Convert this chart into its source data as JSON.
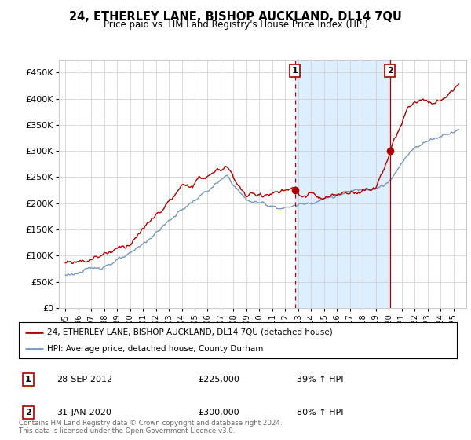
{
  "title": "24, ETHERLEY LANE, BISHOP AUCKLAND, DL14 7QU",
  "subtitle": "Price paid vs. HM Land Registry's House Price Index (HPI)",
  "ylim": [
    0,
    475000
  ],
  "yticks": [
    0,
    50000,
    100000,
    150000,
    200000,
    250000,
    300000,
    350000,
    400000,
    450000
  ],
  "ytick_labels": [
    "£0",
    "£50K",
    "£100K",
    "£150K",
    "£200K",
    "£250K",
    "£300K",
    "£350K",
    "£400K",
    "£450K"
  ],
  "hpi_color": "#7799bb",
  "price_color": "#aa0000",
  "shading_color": "#ddeeff",
  "sale1_year": 2012.75,
  "sale1_price": 225000,
  "sale2_year": 2020.083,
  "sale2_price": 300000,
  "legend_line1": "24, ETHERLEY LANE, BISHOP AUCKLAND, DL14 7QU (detached house)",
  "legend_line2": "HPI: Average price, detached house, County Durham",
  "footer": "Contains HM Land Registry data © Crown copyright and database right 2024.\nThis data is licensed under the Open Government Licence v3.0.",
  "background_color": "#ffffff",
  "grid_color": "#cccccc"
}
